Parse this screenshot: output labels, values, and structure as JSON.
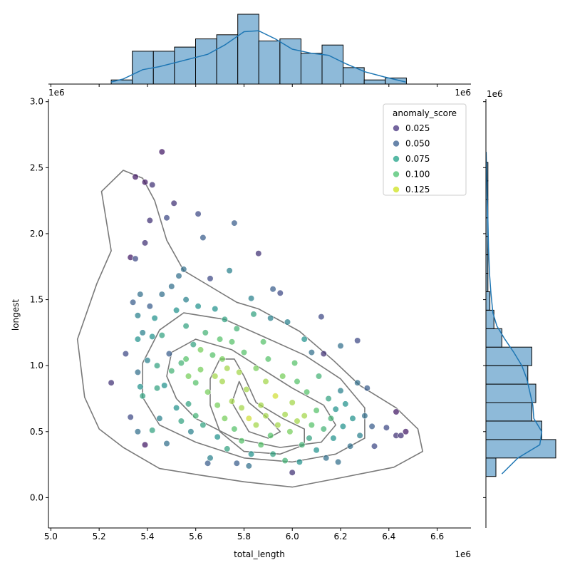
{
  "chart_data": {
    "type": "scatter",
    "xlabel": "total_length",
    "ylabel": "longest",
    "x_offset_label": "1e6",
    "y_offset_label": "1e6",
    "xlim": [
      4.99,
      6.74
    ],
    "ylim": [
      -0.23,
      3.02
    ],
    "x_ticks": [
      5.0,
      5.2,
      5.4,
      5.6,
      5.8,
      6.0,
      6.2,
      6.4,
      6.6
    ],
    "x_tick_labels": [
      "5.0",
      "5.2",
      "5.4",
      "5.6",
      "5.8",
      "6.0",
      "6.2",
      "6.4",
      "6.6"
    ],
    "y_ticks": [
      0.0,
      0.5,
      1.0,
      1.5,
      2.0,
      2.5,
      3.0
    ],
    "y_tick_labels": [
      "0.0",
      "0.5",
      "1.0",
      "1.5",
      "2.0",
      "2.5",
      "3.0"
    ],
    "legend": {
      "title": "anomaly_score",
      "placement": "top-right",
      "entries": [
        {
          "label": "0.025",
          "color": "#46327e"
        },
        {
          "label": "0.050",
          "color": "#365c8d"
        },
        {
          "label": "0.075",
          "color": "#1fa187"
        },
        {
          "label": "0.100",
          "color": "#4ac16d"
        },
        {
          "label": "0.125",
          "color": "#cde11d"
        }
      ]
    },
    "hue_range": [
      0.0,
      0.14
    ],
    "points": [
      [
        5.25,
        0.87,
        0.02
      ],
      [
        5.31,
        1.09,
        0.03
      ],
      [
        5.33,
        0.61,
        0.03
      ],
      [
        5.33,
        1.82,
        0.01
      ],
      [
        5.34,
        1.48,
        0.04
      ],
      [
        5.35,
        2.43,
        0.01
      ],
      [
        5.35,
        1.81,
        0.03
      ],
      [
        5.36,
        1.38,
        0.06
      ],
      [
        5.36,
        1.2,
        0.07
      ],
      [
        5.36,
        0.95,
        0.05
      ],
      [
        5.36,
        0.5,
        0.05
      ],
      [
        5.37,
        1.54,
        0.05
      ],
      [
        5.37,
        0.84,
        0.07
      ],
      [
        5.38,
        1.25,
        0.06
      ],
      [
        5.38,
        0.77,
        0.08
      ],
      [
        5.39,
        2.39,
        0.01
      ],
      [
        5.39,
        1.93,
        0.02
      ],
      [
        5.39,
        0.4,
        0.01
      ],
      [
        5.4,
        1.04,
        0.06
      ],
      [
        5.41,
        2.1,
        0.02
      ],
      [
        5.41,
        1.45,
        0.04
      ],
      [
        5.42,
        2.37,
        0.02
      ],
      [
        5.42,
        1.22,
        0.07
      ],
      [
        5.42,
        0.51,
        0.08
      ],
      [
        5.43,
        1.36,
        0.07
      ],
      [
        5.44,
        1.0,
        0.08
      ],
      [
        5.44,
        0.83,
        0.08
      ],
      [
        5.45,
        0.6,
        0.06
      ],
      [
        5.46,
        2.62,
        0.01
      ],
      [
        5.46,
        1.54,
        0.05
      ],
      [
        5.46,
        1.23,
        0.08
      ],
      [
        5.47,
        0.85,
        0.07
      ],
      [
        5.48,
        0.41,
        0.05
      ],
      [
        5.48,
        2.12,
        0.03
      ],
      [
        5.49,
        1.09,
        0.04
      ],
      [
        5.5,
        1.6,
        0.05
      ],
      [
        5.5,
        0.96,
        0.09
      ],
      [
        5.51,
        2.23,
        0.02
      ],
      [
        5.52,
        1.42,
        0.07
      ],
      [
        5.52,
        0.68,
        0.07
      ],
      [
        5.53,
        1.68,
        0.05
      ],
      [
        5.54,
        1.02,
        0.09
      ],
      [
        5.54,
        0.58,
        0.08
      ],
      [
        5.55,
        1.73,
        0.05
      ],
      [
        5.56,
        1.5,
        0.06
      ],
      [
        5.56,
        1.3,
        0.08
      ],
      [
        5.56,
        1.05,
        0.1
      ],
      [
        5.57,
        0.92,
        0.11
      ],
      [
        5.57,
        0.71,
        0.08
      ],
      [
        5.58,
        0.5,
        0.06
      ],
      [
        5.59,
        1.16,
        0.08
      ],
      [
        5.6,
        0.87,
        0.1
      ],
      [
        5.6,
        0.62,
        0.09
      ],
      [
        5.61,
        2.15,
        0.03
      ],
      [
        5.61,
        1.45,
        0.07
      ],
      [
        5.62,
        1.12,
        0.11
      ],
      [
        5.62,
        0.97,
        0.11
      ],
      [
        5.63,
        0.55,
        0.08
      ],
      [
        5.63,
        1.97,
        0.04
      ],
      [
        5.64,
        1.25,
        0.09
      ],
      [
        5.65,
        0.8,
        0.11
      ],
      [
        5.65,
        0.26,
        0.04
      ],
      [
        5.66,
        1.66,
        0.03
      ],
      [
        5.66,
        0.3,
        0.06
      ],
      [
        5.67,
        1.08,
        0.1
      ],
      [
        5.68,
        1.43,
        0.07
      ],
      [
        5.68,
        0.92,
        0.12
      ],
      [
        5.69,
        0.7,
        0.11
      ],
      [
        5.69,
        0.46,
        0.07
      ],
      [
        5.7,
        1.2,
        0.1
      ],
      [
        5.71,
        1.05,
        0.11
      ],
      [
        5.71,
        0.88,
        0.12
      ],
      [
        5.72,
        1.35,
        0.08
      ],
      [
        5.72,
        0.6,
        0.11
      ],
      [
        5.73,
        0.98,
        0.12
      ],
      [
        5.73,
        0.37,
        0.08
      ],
      [
        5.74,
        1.72,
        0.06
      ],
      [
        5.75,
        1.18,
        0.1
      ],
      [
        5.75,
        0.73,
        0.12
      ],
      [
        5.76,
        0.52,
        0.1
      ],
      [
        5.76,
        2.08,
        0.04
      ],
      [
        5.77,
        1.28,
        0.09
      ],
      [
        5.77,
        0.26,
        0.04
      ],
      [
        5.78,
        0.95,
        0.12
      ],
      [
        5.79,
        0.68,
        0.12
      ],
      [
        5.79,
        0.43,
        0.1
      ],
      [
        5.8,
        1.1,
        0.1
      ],
      [
        5.81,
        0.82,
        0.12
      ],
      [
        5.82,
        0.6,
        0.13
      ],
      [
        5.82,
        0.24,
        0.05
      ],
      [
        5.83,
        1.51,
        0.06
      ],
      [
        5.83,
        0.33,
        0.07
      ],
      [
        5.84,
        1.39,
        0.08
      ],
      [
        5.85,
        0.98,
        0.11
      ],
      [
        5.85,
        0.55,
        0.12
      ],
      [
        5.86,
        1.85,
        0.02
      ],
      [
        5.87,
        0.7,
        0.12
      ],
      [
        5.87,
        0.4,
        0.1
      ],
      [
        5.88,
        1.18,
        0.1
      ],
      [
        5.89,
        0.88,
        0.12
      ],
      [
        5.89,
        0.62,
        0.12
      ],
      [
        5.9,
        1.05,
        0.1
      ],
      [
        5.91,
        0.47,
        0.1
      ],
      [
        5.91,
        1.36,
        0.06
      ],
      [
        5.92,
        0.33,
        0.08
      ],
      [
        5.92,
        1.58,
        0.04
      ],
      [
        5.93,
        0.77,
        0.13
      ],
      [
        5.94,
        0.55,
        0.12
      ],
      [
        5.95,
        1.55,
        0.03
      ],
      [
        5.96,
        0.92,
        0.11
      ],
      [
        5.97,
        0.63,
        0.12
      ],
      [
        5.97,
        0.28,
        0.09
      ],
      [
        5.98,
        1.33,
        0.06
      ],
      [
        5.99,
        0.5,
        0.11
      ],
      [
        6.0,
        0.72,
        0.12
      ],
      [
        6.0,
        0.19,
        0.02
      ],
      [
        6.01,
        1.02,
        0.1
      ],
      [
        6.02,
        0.58,
        0.12
      ],
      [
        6.02,
        0.88,
        0.1
      ],
      [
        6.03,
        0.27,
        0.07
      ],
      [
        6.04,
        0.4,
        0.09
      ],
      [
        6.05,
        0.62,
        0.12
      ],
      [
        6.05,
        1.2,
        0.07
      ],
      [
        6.06,
        0.8,
        0.1
      ],
      [
        6.07,
        0.45,
        0.08
      ],
      [
        6.08,
        1.1,
        0.05
      ],
      [
        6.08,
        0.55,
        0.1
      ],
      [
        6.1,
        0.66,
        0.1
      ],
      [
        6.1,
        0.36,
        0.07
      ],
      [
        6.11,
        0.92,
        0.09
      ],
      [
        6.12,
        1.37,
        0.03
      ],
      [
        6.13,
        0.52,
        0.09
      ],
      [
        6.13,
        1.09,
        0.02
      ],
      [
        6.14,
        0.3,
        0.05
      ],
      [
        6.15,
        0.75,
        0.08
      ],
      [
        6.16,
        0.6,
        0.09
      ],
      [
        6.17,
        0.45,
        0.07
      ],
      [
        6.18,
        0.67,
        0.07
      ],
      [
        6.19,
        0.27,
        0.05
      ],
      [
        6.2,
        0.81,
        0.06
      ],
      [
        6.2,
        1.15,
        0.05
      ],
      [
        6.21,
        0.54,
        0.07
      ],
      [
        6.22,
        0.71,
        0.07
      ],
      [
        6.24,
        0.39,
        0.05
      ],
      [
        6.25,
        0.6,
        0.07
      ],
      [
        6.27,
        0.87,
        0.05
      ],
      [
        6.27,
        1.19,
        0.03
      ],
      [
        6.28,
        0.47,
        0.06
      ],
      [
        6.3,
        0.62,
        0.05
      ],
      [
        6.31,
        0.83,
        0.04
      ],
      [
        6.33,
        0.54,
        0.04
      ],
      [
        6.34,
        0.39,
        0.03
      ],
      [
        6.39,
        0.53,
        0.03
      ],
      [
        6.43,
        0.65,
        0.01
      ],
      [
        6.43,
        0.47,
        0.02
      ],
      [
        6.45,
        0.47,
        0.02
      ],
      [
        6.47,
        0.5,
        0.01
      ]
    ],
    "contour_levels": [
      [
        [
          5.3,
          0.38
        ],
        [
          5.45,
          0.22
        ],
        [
          5.62,
          0.17
        ],
        [
          5.8,
          0.12
        ],
        [
          6.0,
          0.08
        ],
        [
          6.2,
          0.15
        ],
        [
          6.42,
          0.23
        ],
        [
          6.54,
          0.35
        ],
        [
          6.52,
          0.52
        ],
        [
          6.43,
          0.68
        ],
        [
          6.28,
          0.85
        ],
        [
          6.17,
          1.04
        ],
        [
          6.03,
          1.26
        ],
        [
          5.86,
          1.43
        ],
        [
          5.77,
          1.48
        ],
        [
          5.66,
          1.6
        ],
        [
          5.55,
          1.72
        ],
        [
          5.48,
          1.95
        ],
        [
          5.43,
          2.25
        ],
        [
          5.38,
          2.42
        ],
        [
          5.3,
          2.48
        ],
        [
          5.21,
          2.32
        ],
        [
          5.25,
          1.87
        ],
        [
          5.19,
          1.62
        ],
        [
          5.11,
          1.2
        ],
        [
          5.14,
          0.76
        ],
        [
          5.2,
          0.52
        ]
      ],
      [
        [
          5.45,
          0.55
        ],
        [
          5.6,
          0.42
        ],
        [
          5.8,
          0.3
        ],
        [
          6.0,
          0.27
        ],
        [
          6.18,
          0.33
        ],
        [
          6.3,
          0.45
        ],
        [
          6.3,
          0.68
        ],
        [
          6.2,
          0.9
        ],
        [
          6.05,
          1.08
        ],
        [
          5.88,
          1.22
        ],
        [
          5.72,
          1.35
        ],
        [
          5.55,
          1.4
        ],
        [
          5.45,
          1.27
        ],
        [
          5.38,
          1.02
        ],
        [
          5.38,
          0.76
        ]
      ],
      [
        [
          5.52,
          0.75
        ],
        [
          5.6,
          0.6
        ],
        [
          5.76,
          0.45
        ],
        [
          5.95,
          0.38
        ],
        [
          6.12,
          0.42
        ],
        [
          6.18,
          0.55
        ],
        [
          6.13,
          0.7
        ],
        [
          6.0,
          0.83
        ],
        [
          5.87,
          0.98
        ],
        [
          5.75,
          1.12
        ],
        [
          5.6,
          1.2
        ],
        [
          5.5,
          1.1
        ],
        [
          5.48,
          0.92
        ]
      ],
      [
        [
          5.7,
          0.5
        ],
        [
          5.8,
          0.35
        ],
        [
          5.95,
          0.33
        ],
        [
          6.05,
          0.4
        ],
        [
          6.05,
          0.52
        ],
        [
          5.96,
          0.6
        ],
        [
          5.85,
          0.72
        ],
        [
          5.8,
          0.92
        ],
        [
          5.76,
          1.05
        ],
        [
          5.7,
          1.05
        ],
        [
          5.66,
          0.9
        ],
        [
          5.66,
          0.7
        ]
      ],
      [
        [
          5.75,
          0.72
        ],
        [
          5.82,
          0.5
        ],
        [
          5.9,
          0.45
        ],
        [
          5.95,
          0.5
        ],
        [
          5.9,
          0.6
        ],
        [
          5.82,
          0.72
        ],
        [
          5.78,
          0.88
        ]
      ]
    ],
    "x_hist": {
      "bin_edges": [
        5.25,
        5.3373,
        5.4247,
        5.512,
        5.5993,
        5.6867,
        5.774,
        5.8613,
        5.9487,
        6.036,
        6.1233,
        6.2107,
        6.298,
        6.3853,
        6.4727
      ],
      "counts": [
        2,
        16,
        16,
        18,
        22,
        24,
        34,
        21,
        22,
        15,
        19,
        8,
        2,
        3
      ],
      "kde": [
        [
          5.25,
          1.0
        ],
        [
          5.3,
          2.5
        ],
        [
          5.38,
          7.0
        ],
        [
          5.45,
          8.5
        ],
        [
          5.55,
          11.5
        ],
        [
          5.65,
          14.5
        ],
        [
          5.72,
          19.0
        ],
        [
          5.8,
          25.5
        ],
        [
          5.86,
          26.0
        ],
        [
          5.93,
          22.0
        ],
        [
          6.0,
          17.0
        ],
        [
          6.08,
          15.0
        ],
        [
          6.15,
          14.0
        ],
        [
          6.22,
          10.0
        ],
        [
          6.3,
          6.0
        ],
        [
          6.38,
          3.5
        ],
        [
          6.47,
          1.0
        ]
      ]
    },
    "y_hist": {
      "bin_edges": [
        0.16,
        0.3,
        0.44,
        0.58,
        0.72,
        0.86,
        1.0,
        1.14,
        1.28,
        1.42,
        1.56,
        1.7,
        1.84,
        1.98,
        2.12,
        2.26,
        2.4,
        2.54,
        2.62
      ],
      "counts": [
        5,
        35,
        28,
        23,
        25,
        21,
        23,
        8,
        4,
        2,
        1,
        1,
        1,
        1,
        1,
        1,
        1,
        0
      ],
      "kde": [
        [
          0.18,
          8.0
        ],
        [
          0.3,
          16.0
        ],
        [
          0.4,
          27.0
        ],
        [
          0.5,
          28.0
        ],
        [
          0.6,
          24.0
        ],
        [
          0.7,
          23.5
        ],
        [
          0.8,
          22.0
        ],
        [
          0.9,
          20.5
        ],
        [
          1.0,
          18.0
        ],
        [
          1.1,
          14.0
        ],
        [
          1.2,
          9.5
        ],
        [
          1.3,
          5.5
        ],
        [
          1.4,
          3.5
        ],
        [
          1.55,
          2.5
        ],
        [
          1.7,
          1.8
        ],
        [
          1.9,
          1.3
        ],
        [
          2.1,
          1.0
        ],
        [
          2.3,
          0.6
        ],
        [
          2.5,
          0.3
        ],
        [
          2.62,
          0.1
        ]
      ]
    }
  }
}
